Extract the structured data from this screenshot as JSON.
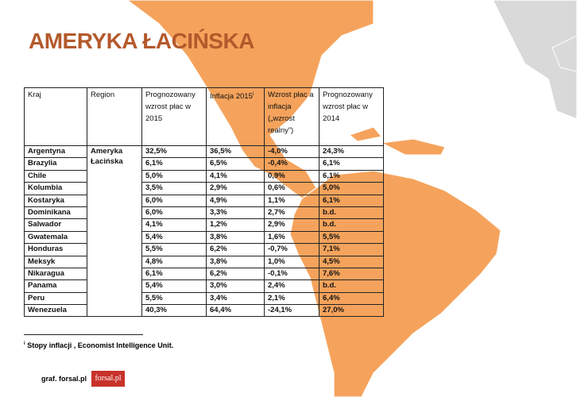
{
  "title": "AMERYKA ŁACIŃSKA",
  "table": {
    "headers": [
      "Kraj",
      "Region",
      "Prognozowany wzrost płac w 2015",
      "Inflacja 2015",
      "Wzrost płac a inflacja („wzrost realny”)",
      "Prognozowany wzrost płac w 2014"
    ],
    "footnote_marker": "i",
    "region": "Ameryka Łacińska",
    "rows": [
      [
        "Argentyna",
        "32,5%",
        "36,5%",
        "-4,0%",
        "24,3%"
      ],
      [
        "Brazylia",
        "6,1%",
        "6,5%",
        "-0,4%",
        "6,1%"
      ],
      [
        "Chile",
        "5,0%",
        "4,1%",
        "0,9%",
        "6,1%"
      ],
      [
        "Kolumbia",
        "3,5%",
        "2,9%",
        "0,6%",
        "5,0%"
      ],
      [
        "Kostaryka",
        "6,0%",
        "4,9%",
        "1,1%",
        "6,1%"
      ],
      [
        "Dominikana",
        "6,0%",
        "3,3%",
        "2,7%",
        "b.d."
      ],
      [
        "Salwador",
        "4,1%",
        "1,2%",
        "2,9%",
        "b.d."
      ],
      [
        "Gwatemala",
        "5,4%",
        "3,8%",
        "1,6%",
        "5,5%"
      ],
      [
        "Honduras",
        "5,5%",
        "6,2%",
        "-0,7%",
        "7,1%"
      ],
      [
        "Meksyk",
        "4,8%",
        "3,8%",
        "1,0%",
        "4,5%"
      ],
      [
        "Nikaragua",
        "6,1%",
        "6,2%",
        "-0,1%",
        "7,6%"
      ],
      [
        "Panama",
        "5,4%",
        "3,0%",
        "2,4%",
        "b.d."
      ],
      [
        "Peru",
        "5,5%",
        "3,4%",
        "2,1%",
        "6,4%"
      ],
      [
        "Wenezuela",
        "40,3%",
        "64,4%",
        "-24,1%",
        "27,0%"
      ]
    ]
  },
  "footnote": "Stopy inflacji , Economist Intelligence Unit.",
  "credit": "graf. forsal.pl",
  "logo": "forsal.pl"
}
